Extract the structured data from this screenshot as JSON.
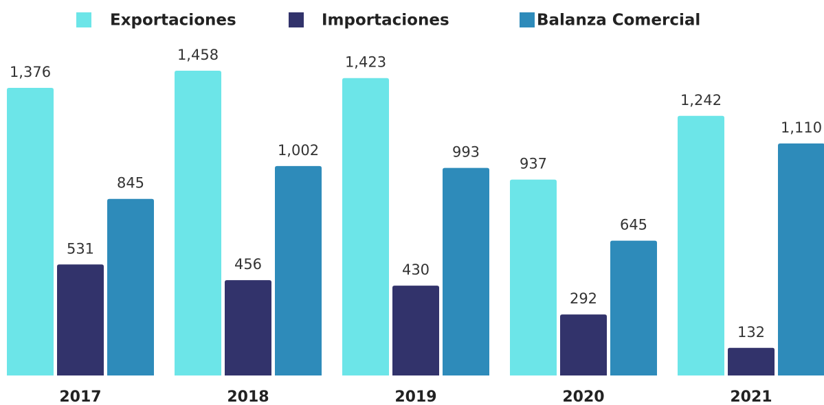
{
  "chart_data": {
    "type": "bar",
    "categories": [
      "2017",
      "2018",
      "2019",
      "2020",
      "2021"
    ],
    "series": [
      {
        "name": "Exportaciones",
        "color": "#6ce5e8",
        "values": [
          1376,
          1458,
          1423,
          937,
          1242
        ],
        "value_labels": [
          "1,376",
          "1,458",
          "1,423",
          "937",
          "1,242"
        ]
      },
      {
        "name": "Importaciones",
        "color": "#32336b",
        "values": [
          531,
          456,
          430,
          292,
          132
        ],
        "value_labels": [
          "531",
          "456",
          "430",
          "292",
          "132"
        ]
      },
      {
        "name": "Balanza Comercial",
        "color": "#2e8bba",
        "values": [
          845,
          1002,
          993,
          645,
          1110
        ],
        "value_labels": [
          "845",
          "1,002",
          "993",
          "645",
          "1,110"
        ]
      }
    ],
    "legend": "top"
  }
}
